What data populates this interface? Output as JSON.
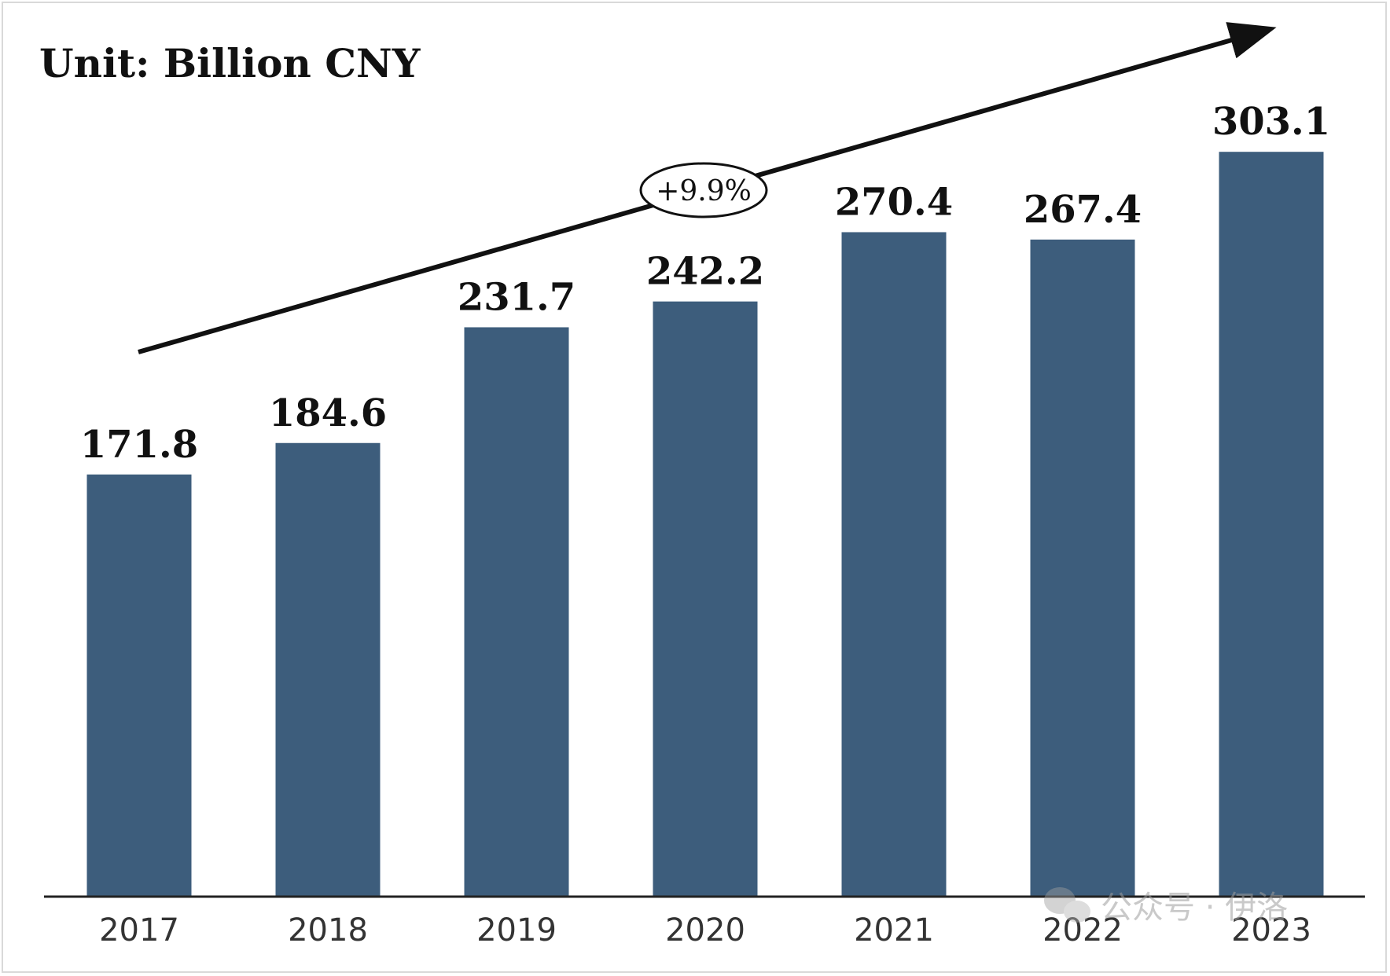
{
  "chart_data": {
    "type": "bar",
    "unit_label": "Unit:  Billion CNY",
    "categories": [
      "2017",
      "2018",
      "2019",
      "2020",
      "2021",
      "2022",
      "2023"
    ],
    "values": [
      171.8,
      184.6,
      231.7,
      242.2,
      270.4,
      267.4,
      303.1
    ],
    "value_labels": [
      "171.8",
      "184.6",
      "231.7",
      "242.2",
      "270.4",
      "267.4",
      "303.1"
    ],
    "growth_annotation": "+9.9%",
    "bar_color": "#3d5d7c",
    "grid": false
  },
  "watermark": "公众号 · 伊洛"
}
